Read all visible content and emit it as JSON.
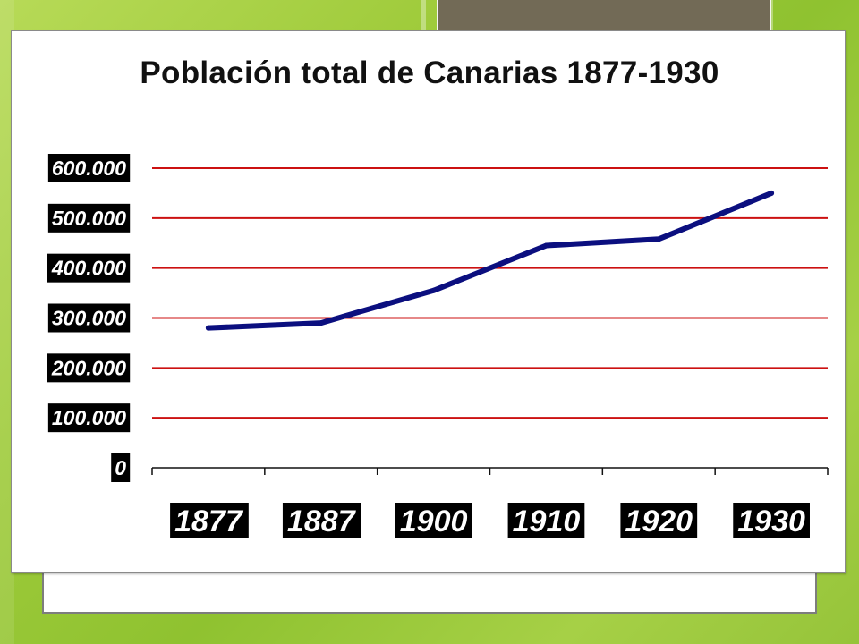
{
  "colors": {
    "series_line": "#0b0f7f",
    "gridline": "#cc1111",
    "axis": "#111111",
    "tick_label_bg": "#000000",
    "tick_label_text": "#ffffff"
  },
  "chart_data": {
    "type": "line",
    "title": "Población total de Canarias 1877-1930",
    "categories": [
      "1877",
      "1887",
      "1900",
      "1910",
      "1920",
      "1930"
    ],
    "series": [
      {
        "values": [
          280000,
          290000,
          355000,
          445000,
          458000,
          550000
        ]
      }
    ],
    "ylim": [
      0,
      600000
    ],
    "y_ticks": [
      {
        "value": 600000,
        "label": "600.000"
      },
      {
        "value": 500000,
        "label": "500.000"
      },
      {
        "value": 400000,
        "label": "400.000"
      },
      {
        "value": 300000,
        "label": "300.000"
      },
      {
        "value": 200000,
        "label": "200.000"
      },
      {
        "value": 100000,
        "label": "100.000"
      },
      {
        "value": 0,
        "label": "0"
      }
    ],
    "grid": true,
    "legend": false
  }
}
